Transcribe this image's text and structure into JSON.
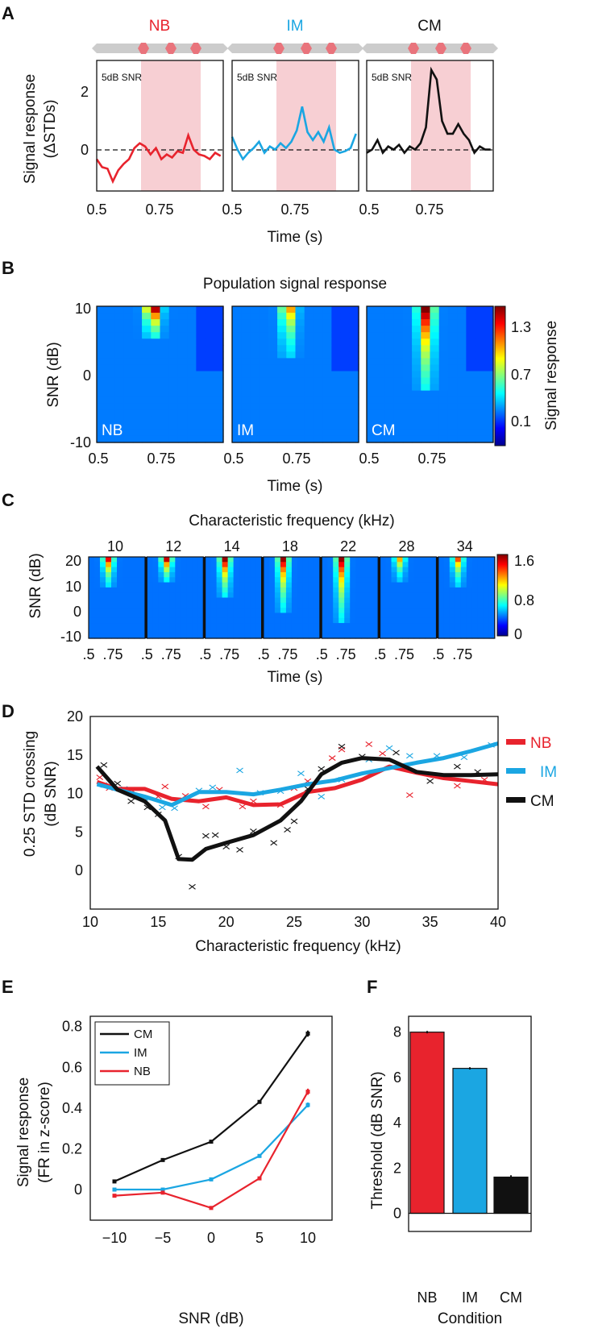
{
  "colors": {
    "NB": "#e8232d",
    "IM": "#1ba6e2",
    "CM": "#111111",
    "shade": "#f7cfd3",
    "stimulus_bar": "#cccccc",
    "stimulus_pip": "#e9747c"
  },
  "panelA": {
    "letter": "A",
    "ylabel_line1": "Signal response",
    "ylabel_line2": "(ΔSTDs)",
    "xlabel": "Time (s)",
    "snr_note": "5dB SNR",
    "yticks": [
      "2",
      "0"
    ],
    "xticks": [
      "0.5",
      "0.75"
    ],
    "subplots": [
      {
        "title": "NB",
        "key": "NB"
      },
      {
        "title": "IM",
        "key": "IM"
      },
      {
        "title": "CM",
        "key": "CM"
      }
    ]
  },
  "panelB": {
    "letter": "B",
    "title": "Population signal response",
    "ylabel": "SNR (dB)",
    "xlabel": "Time (s)",
    "yticks": [
      "10",
      "0",
      "-10"
    ],
    "xticks": [
      "0.5",
      "0.75"
    ],
    "colorbar_label": "Signal response",
    "colorbar_ticks": [
      "1.3",
      "0.7",
      "0.1"
    ],
    "subplot_labels": [
      "NB",
      "IM",
      "CM"
    ]
  },
  "panelC": {
    "letter": "C",
    "title": "Characteristic frequency (kHz)",
    "ylabel": "SNR (dB)",
    "xlabel": "Time (s)",
    "freqs": [
      "10",
      "12",
      "14",
      "18",
      "22",
      "28",
      "34"
    ],
    "yticks": [
      "20",
      "10",
      "0",
      "-10"
    ],
    "xticks": [
      ".5",
      ".75",
      ".5",
      ".75",
      ".5",
      ".75",
      ".5",
      ".75",
      ".5",
      ".75",
      ".5",
      ".75",
      ".5",
      ".75"
    ],
    "colorbar_ticks": [
      "1.6",
      "0.8",
      "0"
    ]
  },
  "panelD": {
    "letter": "D",
    "ylabel_line1": "0.25 STD crossing",
    "ylabel_line2": "(dB SNR)",
    "xlabel": "Characteristic frequency (kHz)",
    "xticks": [
      "10",
      "15",
      "20",
      "25",
      "30",
      "35",
      "40"
    ],
    "yticks": [
      "20",
      "15",
      "10",
      "5",
      "0"
    ],
    "legend": [
      "NB",
      "IM",
      "CM"
    ]
  },
  "panelE": {
    "letter": "E",
    "ylabel_line1": "Signal response",
    "ylabel_line2": "(FR in z-score)",
    "xlabel": "SNR (dB)",
    "xticks": [
      "−10",
      "−5",
      "0",
      "5",
      "10"
    ],
    "yticks": [
      "0.8",
      "0.6",
      "0.4",
      "0.2",
      "0"
    ],
    "legend": [
      "CM",
      "IM",
      "NB"
    ]
  },
  "panelF": {
    "letter": "F",
    "ylabel": "Threshold (dB SNR)",
    "xlabel": "Condition",
    "yticks": [
      "8",
      "6",
      "4",
      "2",
      "0"
    ],
    "categories": [
      "NB",
      "IM",
      "CM"
    ]
  },
  "chart_data": [
    {
      "panel": "A",
      "type": "line",
      "xlabel": "Time (s)",
      "ylabel": "Signal response (ΔSTDs)",
      "xlim": [
        0.5,
        0.97
      ],
      "ylim": [
        -1.3,
        2.8
      ],
      "shaded_interval": [
        0.675,
        0.9
      ],
      "series": [
        {
          "name": "NB",
          "x": [
            0.5,
            0.52,
            0.54,
            0.56,
            0.58,
            0.6,
            0.62,
            0.64,
            0.66,
            0.68,
            0.7,
            0.72,
            0.74,
            0.76,
            0.78,
            0.8,
            0.82,
            0.84,
            0.86,
            0.88,
            0.9,
            0.92,
            0.94,
            0.96
          ],
          "y": [
            -0.3,
            -0.55,
            -0.6,
            -1.0,
            -0.65,
            -0.45,
            -0.3,
            0.05,
            0.2,
            0.1,
            -0.15,
            0.05,
            -0.3,
            -0.15,
            -0.25,
            -0.05,
            -0.1,
            0.45,
            0.0,
            -0.15,
            -0.2,
            -0.3,
            -0.1,
            -0.2
          ]
        },
        {
          "name": "IM",
          "x": [
            0.5,
            0.52,
            0.54,
            0.56,
            0.58,
            0.6,
            0.62,
            0.64,
            0.66,
            0.68,
            0.7,
            0.72,
            0.74,
            0.76,
            0.78,
            0.8,
            0.82,
            0.84,
            0.86,
            0.88,
            0.9,
            0.92,
            0.94,
            0.96
          ],
          "y": [
            0.4,
            0.0,
            -0.3,
            -0.1,
            0.05,
            0.25,
            -0.1,
            0.1,
            0.0,
            0.2,
            0.05,
            0.25,
            0.6,
            1.35,
            0.55,
            0.3,
            0.55,
            0.25,
            0.7,
            0.0,
            -0.1,
            -0.05,
            0.05,
            0.5
          ]
        },
        {
          "name": "CM",
          "x": [
            0.5,
            0.52,
            0.54,
            0.56,
            0.58,
            0.6,
            0.62,
            0.64,
            0.66,
            0.68,
            0.7,
            0.72,
            0.74,
            0.76,
            0.78,
            0.8,
            0.82,
            0.84,
            0.86,
            0.88,
            0.9,
            0.92,
            0.94,
            0.96
          ],
          "y": [
            -0.1,
            0.0,
            0.3,
            -0.1,
            0.1,
            0.0,
            0.15,
            -0.1,
            0.1,
            0.0,
            0.2,
            0.7,
            2.5,
            2.2,
            0.9,
            0.5,
            0.5,
            0.8,
            0.5,
            0.3,
            -0.1,
            0.1,
            0.0,
            0.0
          ]
        }
      ]
    },
    {
      "panel": "B",
      "type": "heatmap",
      "xlabel": "Time (s)",
      "ylabel": "SNR (dB)",
      "xlim": [
        0.5,
        0.97
      ],
      "ylim": [
        -10,
        10
      ],
      "colorbar": {
        "label": "Signal response",
        "ticks": [
          0.1,
          0.7,
          1.3
        ],
        "range": [
          -0.2,
          1.55
        ]
      },
      "grid_cols": 14,
      "grid_rows": 21,
      "conditions": [
        {
          "name": "NB",
          "peak_time": 0.71,
          "peak_value": 1.5,
          "min_snr_extent": 6
        },
        {
          "name": "IM",
          "peak_time": 0.71,
          "peak_value": 1.0,
          "min_snr_extent": 3
        },
        {
          "name": "CM",
          "peak_time": 0.72,
          "peak_value": 1.55,
          "min_snr_extent": -2
        }
      ]
    },
    {
      "panel": "C",
      "type": "heatmap",
      "xlabel": "Time (s)",
      "ylabel": "SNR (dB)",
      "ylim": [
        -10,
        20
      ],
      "colorbar": {
        "ticks": [
          0,
          0.8,
          1.6
        ],
        "range": [
          -0.2,
          1.7
        ]
      },
      "characteristic_frequencies_khz": [
        10,
        12,
        14,
        18,
        22,
        28,
        34
      ],
      "peak_values": [
        1.4,
        1.5,
        1.6,
        1.6,
        1.6,
        1.0,
        1.2
      ],
      "extent_snr": [
        10,
        12,
        5,
        0,
        -5,
        12,
        10
      ]
    },
    {
      "panel": "D",
      "type": "line",
      "xlabel": "Characteristic frequency (kHz)",
      "ylabel": "0.25 STD crossing (dB SNR)",
      "xlim": [
        10,
        40
      ],
      "ylim": [
        -5,
        20
      ],
      "series": [
        {
          "name": "NB",
          "x": [
            10.5,
            12,
            14,
            16,
            18,
            20,
            22,
            24,
            26,
            28,
            30,
            32,
            34,
            36,
            38,
            40
          ],
          "y": [
            11.5,
            10.6,
            10.6,
            9.3,
            9.0,
            9.5,
            8.5,
            8.6,
            10.2,
            10.7,
            11.8,
            13.5,
            12.7,
            12.0,
            11.6,
            11.2
          ]
        },
        {
          "name": "IM",
          "x": [
            10.5,
            12,
            14,
            16,
            18,
            20,
            22,
            24,
            26,
            28,
            30,
            32,
            34,
            36,
            38,
            40
          ],
          "y": [
            11.2,
            10.5,
            9.6,
            8.5,
            10.2,
            10.2,
            9.9,
            10.5,
            11.2,
            11.7,
            12.6,
            13.3,
            14.0,
            14.6,
            15.5,
            16.5
          ]
        },
        {
          "name": "CM",
          "x": [
            10.5,
            12,
            14,
            15.5,
            16.5,
            17.5,
            18.5,
            20,
            22,
            24,
            25.5,
            27,
            28.5,
            30,
            32,
            34,
            36,
            38,
            40
          ],
          "y": [
            13.5,
            10.5,
            9.0,
            6.5,
            1.5,
            1.4,
            2.8,
            3.6,
            4.6,
            6.5,
            9.0,
            12.5,
            14.0,
            14.6,
            14.4,
            12.8,
            12.4,
            12.4,
            12.5
          ]
        }
      ],
      "scatter": [
        {
          "name": "NB",
          "x": [
            10.7,
            11.4,
            13,
            15,
            15.5,
            17,
            18.5,
            19.5,
            21.2,
            22,
            24,
            25,
            26,
            27.8,
            28.5,
            30.5,
            31.5,
            33.5,
            37,
            39
          ],
          "y": [
            12.1,
            10.7,
            10.5,
            9.6,
            10.9,
            9.7,
            8.3,
            10.5,
            8.3,
            9.0,
            8.5,
            10.7,
            11.6,
            14.6,
            15.7,
            16.4,
            15.2,
            9.8,
            11.0,
            11.8
          ]
        },
        {
          "name": "IM",
          "x": [
            11,
            12.5,
            14,
            15.3,
            16.2,
            18,
            19,
            21,
            22.5,
            24,
            25.5,
            27,
            28.5,
            30.5,
            32,
            33.5,
            35.5,
            37.5,
            39.5
          ],
          "y": [
            11.1,
            10.6,
            9.4,
            8.2,
            8.1,
            10.4,
            10.8,
            13.0,
            10.1,
            10.3,
            12.6,
            9.6,
            11.8,
            14.4,
            15.9,
            14.9,
            14.9,
            14.7,
            16.3
          ]
        },
        {
          "name": "CM",
          "x": [
            11,
            12,
            13,
            14.2,
            15,
            16.5,
            17.5,
            18.5,
            19.2,
            20,
            21,
            22,
            23.5,
            24.5,
            25,
            26,
            27,
            28.5,
            30,
            32.5,
            35,
            37,
            38.5
          ],
          "y": [
            13.7,
            11.3,
            9.0,
            8.2,
            7.3,
            1.8,
            -2.1,
            4.5,
            4.6,
            3.1,
            2.7,
            5.1,
            3.6,
            5.3,
            6.4,
            10.6,
            13.2,
            16.1,
            14.8,
            15.3,
            11.6,
            13.5,
            12.8
          ]
        }
      ]
    },
    {
      "panel": "E",
      "type": "line",
      "xlabel": "SNR (dB)",
      "ylabel": "Signal response (FR in z-score)",
      "x": [
        -10,
        -5,
        0,
        5,
        10
      ],
      "xlim": [
        -12.5,
        12.5
      ],
      "ylim": [
        -0.15,
        0.85
      ],
      "series": [
        {
          "name": "CM",
          "values": [
            0.04,
            0.145,
            0.235,
            0.43,
            0.765
          ],
          "errors": [
            0.005,
            0.005,
            0.005,
            0.008,
            0.015
          ]
        },
        {
          "name": "IM",
          "values": [
            0.0,
            0.0,
            0.05,
            0.165,
            0.415
          ],
          "errors": [
            0.004,
            0.004,
            0.005,
            0.007,
            0.012
          ]
        },
        {
          "name": "NB",
          "values": [
            -0.03,
            -0.015,
            -0.09,
            0.055,
            0.48
          ],
          "errors": [
            0.004,
            0.004,
            0.005,
            0.007,
            0.015
          ]
        }
      ]
    },
    {
      "panel": "F",
      "type": "bar",
      "xlabel": "Condition",
      "ylabel": "Threshold (dB SNR)",
      "categories": [
        "NB",
        "IM",
        "CM"
      ],
      "values": [
        8.0,
        6.4,
        1.6
      ],
      "errors": [
        0.05,
        0.05,
        0.08
      ],
      "ylim": [
        -0.8,
        8.7
      ]
    }
  ]
}
